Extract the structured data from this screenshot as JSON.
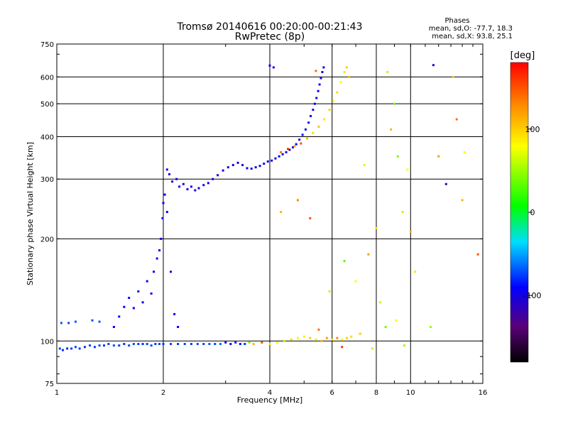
{
  "chart_data": {
    "type": "scatter",
    "title": "Tromsø 20140616 00:20:00-00:21:43",
    "subtitle": "RwPretec (8p)",
    "xlabel": "Frequency [MHz]",
    "ylabel": "Stationary phase Virtual Height [km]",
    "xscale": "log",
    "yscale": "log",
    "xlim": [
      1,
      16
    ],
    "ylim": [
      75,
      750
    ],
    "xticks": [
      1,
      2,
      4,
      6,
      8,
      10,
      16
    ],
    "yticks": [
      75,
      100,
      200,
      300,
      400,
      500,
      600,
      750
    ],
    "grid": true,
    "stats": {
      "header": "Phases",
      "line1": "mean, sd,O:  -77.7, 18.3",
      "line2": "mean, sd,X:   93.8, 25.1"
    },
    "colorbar": {
      "label": "[deg]",
      "range": [
        -180,
        180
      ],
      "ticks": [
        100,
        0,
        -100
      ],
      "colormap": "rainbow"
    },
    "series": [
      {
        "mode": "O",
        "mean_phase": -77.7,
        "points": [
          [
            1.02,
            95,
            -75
          ],
          [
            1.04,
            94,
            -78
          ],
          [
            1.07,
            95,
            -80
          ],
          [
            1.1,
            95,
            -76
          ],
          [
            1.13,
            96,
            -72
          ],
          [
            1.16,
            95,
            -75
          ],
          [
            1.2,
            96,
            -79
          ],
          [
            1.24,
            97,
            -74
          ],
          [
            1.28,
            96,
            -77
          ],
          [
            1.32,
            97,
            -73
          ],
          [
            1.36,
            97,
            -78
          ],
          [
            1.4,
            98,
            -75
          ],
          [
            1.45,
            97,
            -71
          ],
          [
            1.5,
            97,
            -76
          ],
          [
            1.55,
            98,
            -79
          ],
          [
            1.6,
            97,
            -74
          ],
          [
            1.65,
            98,
            -72
          ],
          [
            1.7,
            98,
            -76
          ],
          [
            1.75,
            98,
            -80
          ],
          [
            1.8,
            98,
            -75
          ],
          [
            1.85,
            97,
            -73
          ],
          [
            1.9,
            98,
            -77
          ],
          [
            1.95,
            98,
            -74
          ],
          [
            2.0,
            98,
            -78
          ],
          [
            2.1,
            98,
            -75
          ],
          [
            2.2,
            98,
            -76
          ],
          [
            2.3,
            98,
            -74
          ],
          [
            2.4,
            98,
            -77
          ],
          [
            2.5,
            98,
            -73
          ],
          [
            2.6,
            98,
            -76
          ],
          [
            2.7,
            98,
            -72
          ],
          [
            2.8,
            98,
            -74
          ],
          [
            2.9,
            98,
            -66
          ],
          [
            3.0,
            99,
            -95
          ],
          [
            3.1,
            98,
            -100
          ],
          [
            3.2,
            99,
            -82
          ],
          [
            3.3,
            98,
            -85
          ],
          [
            3.4,
            98,
            -78
          ],
          [
            1.03,
            113,
            -70
          ],
          [
            1.08,
            113,
            -72
          ],
          [
            1.13,
            114,
            -68
          ],
          [
            1.26,
            115,
            -71
          ],
          [
            1.32,
            114,
            -69
          ],
          [
            1.45,
            110,
            -90
          ],
          [
            1.5,
            118,
            -88
          ],
          [
            1.55,
            126,
            -92
          ],
          [
            1.6,
            134,
            -95
          ],
          [
            1.65,
            125,
            -90
          ],
          [
            1.7,
            140,
            -93
          ],
          [
            1.75,
            130,
            -96
          ],
          [
            1.8,
            150,
            -91
          ],
          [
            1.85,
            138,
            -94
          ],
          [
            1.88,
            160,
            -97
          ],
          [
            1.92,
            175,
            -95
          ],
          [
            1.95,
            185,
            -92
          ],
          [
            1.97,
            200,
            -96
          ],
          [
            1.99,
            230,
            -98
          ],
          [
            2.0,
            255,
            -100
          ],
          [
            2.02,
            270,
            -98
          ],
          [
            2.05,
            240,
            -96
          ],
          [
            2.1,
            160,
            -94
          ],
          [
            2.15,
            120,
            -90
          ],
          [
            2.2,
            110,
            -92
          ],
          [
            2.05,
            320,
            -101
          ],
          [
            2.08,
            310,
            -103
          ],
          [
            2.12,
            295,
            -99
          ],
          [
            2.18,
            300,
            -102
          ],
          [
            2.22,
            285,
            -100
          ],
          [
            2.28,
            290,
            -104
          ],
          [
            2.34,
            280,
            -101
          ],
          [
            2.4,
            285,
            -99
          ],
          [
            2.46,
            278,
            -103
          ],
          [
            2.52,
            282,
            -100
          ],
          [
            2.6,
            288,
            -102
          ],
          [
            2.68,
            292,
            -98
          ],
          [
            2.76,
            300,
            -101
          ],
          [
            2.85,
            308,
            -100
          ],
          [
            2.95,
            318,
            -99
          ],
          [
            3.05,
            325,
            -102
          ],
          [
            3.15,
            330,
            -100
          ],
          [
            3.25,
            335,
            -98
          ],
          [
            3.35,
            330,
            -101
          ],
          [
            3.45,
            323,
            -99
          ],
          [
            3.55,
            322,
            -100
          ],
          [
            3.65,
            325,
            -98
          ],
          [
            3.75,
            328,
            -102
          ],
          [
            3.85,
            333,
            -99
          ],
          [
            3.95,
            338,
            -97
          ],
          [
            4.05,
            340,
            -98
          ],
          [
            4.15,
            345,
            -100
          ],
          [
            4.25,
            350,
            -96
          ],
          [
            4.35,
            355,
            -98
          ],
          [
            4.45,
            360,
            -95
          ],
          [
            4.55,
            366,
            -97
          ],
          [
            4.65,
            372,
            -95
          ],
          [
            4.75,
            380,
            -96
          ],
          [
            4.85,
            392,
            -94
          ],
          [
            4.95,
            405,
            -96
          ],
          [
            5.05,
            420,
            -95
          ],
          [
            5.15,
            440,
            -97
          ],
          [
            5.22,
            460,
            -95
          ],
          [
            5.3,
            480,
            -96
          ],
          [
            5.36,
            500,
            -94
          ],
          [
            5.42,
            520,
            -96
          ],
          [
            5.48,
            545,
            -95
          ],
          [
            5.53,
            570,
            -97
          ],
          [
            5.58,
            595,
            -95
          ],
          [
            5.63,
            620,
            -96
          ],
          [
            5.68,
            640,
            -94
          ],
          [
            4.0,
            648,
            -95
          ],
          [
            4.1,
            640,
            -96
          ]
        ]
      },
      {
        "mode": "X",
        "mean_phase": 93.8,
        "points": [
          [
            3.5,
            99,
            40
          ],
          [
            3.6,
            98,
            110
          ],
          [
            3.8,
            99,
            150
          ],
          [
            4.0,
            98,
            90
          ],
          [
            4.2,
            99,
            80
          ],
          [
            4.4,
            100,
            60
          ],
          [
            4.6,
            101,
            95
          ],
          [
            4.8,
            102,
            75
          ],
          [
            5.0,
            103,
            85
          ],
          [
            5.2,
            102,
            100
          ],
          [
            5.4,
            101,
            70
          ],
          [
            5.6,
            100,
            110
          ],
          [
            5.8,
            102,
            120
          ],
          [
            6.0,
            101,
            90
          ],
          [
            6.2,
            102,
            130
          ],
          [
            6.4,
            101,
            80
          ],
          [
            6.6,
            102,
            100
          ],
          [
            6.8,
            103,
            95
          ],
          [
            4.3,
            360,
            140
          ],
          [
            4.5,
            368,
            160
          ],
          [
            4.7,
            375,
            120
          ],
          [
            4.9,
            382,
            150
          ],
          [
            5.1,
            395,
            110
          ],
          [
            5.3,
            410,
            95
          ],
          [
            5.5,
            428,
            105
          ],
          [
            5.7,
            450,
            90
          ],
          [
            5.9,
            480,
            100
          ],
          [
            6.05,
            510,
            85
          ],
          [
            6.2,
            540,
            95
          ],
          [
            6.35,
            580,
            80
          ],
          [
            6.5,
            620,
            90
          ],
          [
            6.6,
            640,
            100
          ],
          [
            6.7,
            600,
            110
          ],
          [
            5.4,
            625,
            140
          ],
          [
            5.9,
            140,
            60
          ],
          [
            6.5,
            172,
            30
          ],
          [
            7.0,
            150,
            80
          ],
          [
            7.6,
            180,
            120
          ],
          [
            8.2,
            130,
            60
          ],
          [
            8.8,
            420,
            110
          ],
          [
            9.2,
            350,
            40
          ],
          [
            9.5,
            240,
            60
          ],
          [
            9.8,
            320,
            80
          ],
          [
            10.3,
            160,
            90
          ],
          [
            11.4,
            110,
            50
          ],
          [
            12.0,
            350,
            120
          ],
          [
            13.2,
            600,
            100
          ],
          [
            13.5,
            450,
            140
          ],
          [
            14.0,
            260,
            110
          ],
          [
            14.2,
            360,
            80
          ],
          [
            15.5,
            180,
            150
          ],
          [
            7.4,
            330,
            70
          ],
          [
            8.0,
            215,
            90
          ],
          [
            8.6,
            620,
            60
          ],
          [
            9.0,
            500,
            40
          ],
          [
            10.0,
            210,
            110
          ],
          [
            11.6,
            650,
            -110
          ],
          [
            12.6,
            290,
            -120
          ],
          [
            5.2,
            230,
            150
          ],
          [
            4.8,
            260,
            130
          ],
          [
            4.3,
            240,
            110
          ],
          [
            5.5,
            108,
            140
          ],
          [
            6.4,
            96,
            160
          ],
          [
            7.2,
            105,
            100
          ],
          [
            7.8,
            95,
            60
          ],
          [
            8.5,
            110,
            40
          ],
          [
            9.1,
            115,
            80
          ],
          [
            9.6,
            97,
            50
          ]
        ]
      }
    ]
  }
}
